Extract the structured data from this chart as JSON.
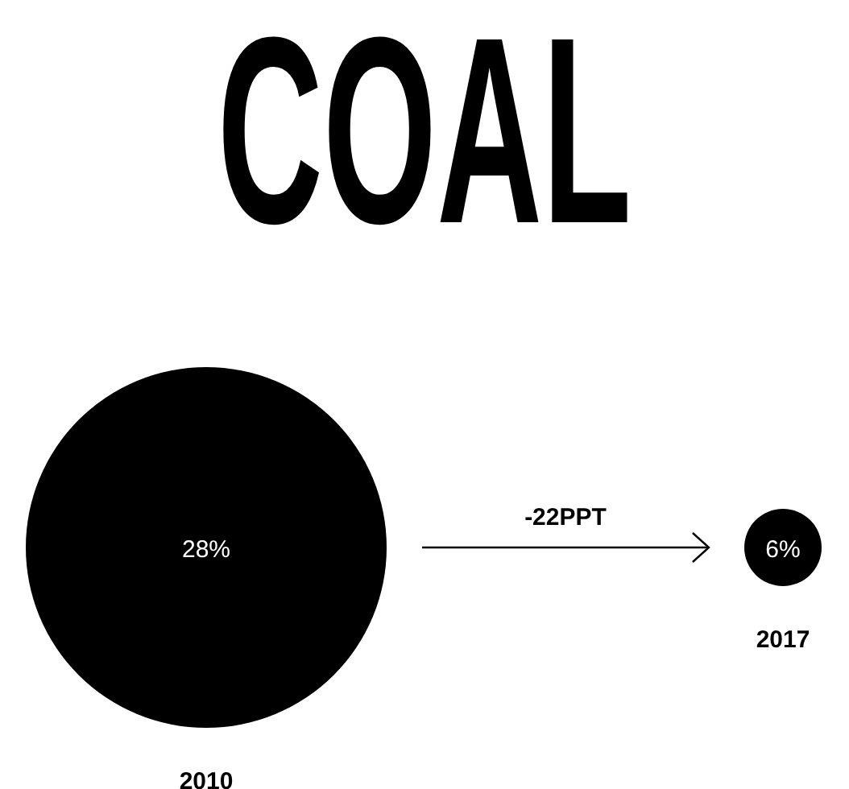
{
  "chart_data": {
    "type": "other",
    "title": "COAL",
    "categories": [
      "2010",
      "2017"
    ],
    "values": [
      28,
      6
    ],
    "value_labels": [
      "28%",
      "6%"
    ],
    "color": "#000000",
    "annotations": [
      "-22PPT"
    ]
  }
}
